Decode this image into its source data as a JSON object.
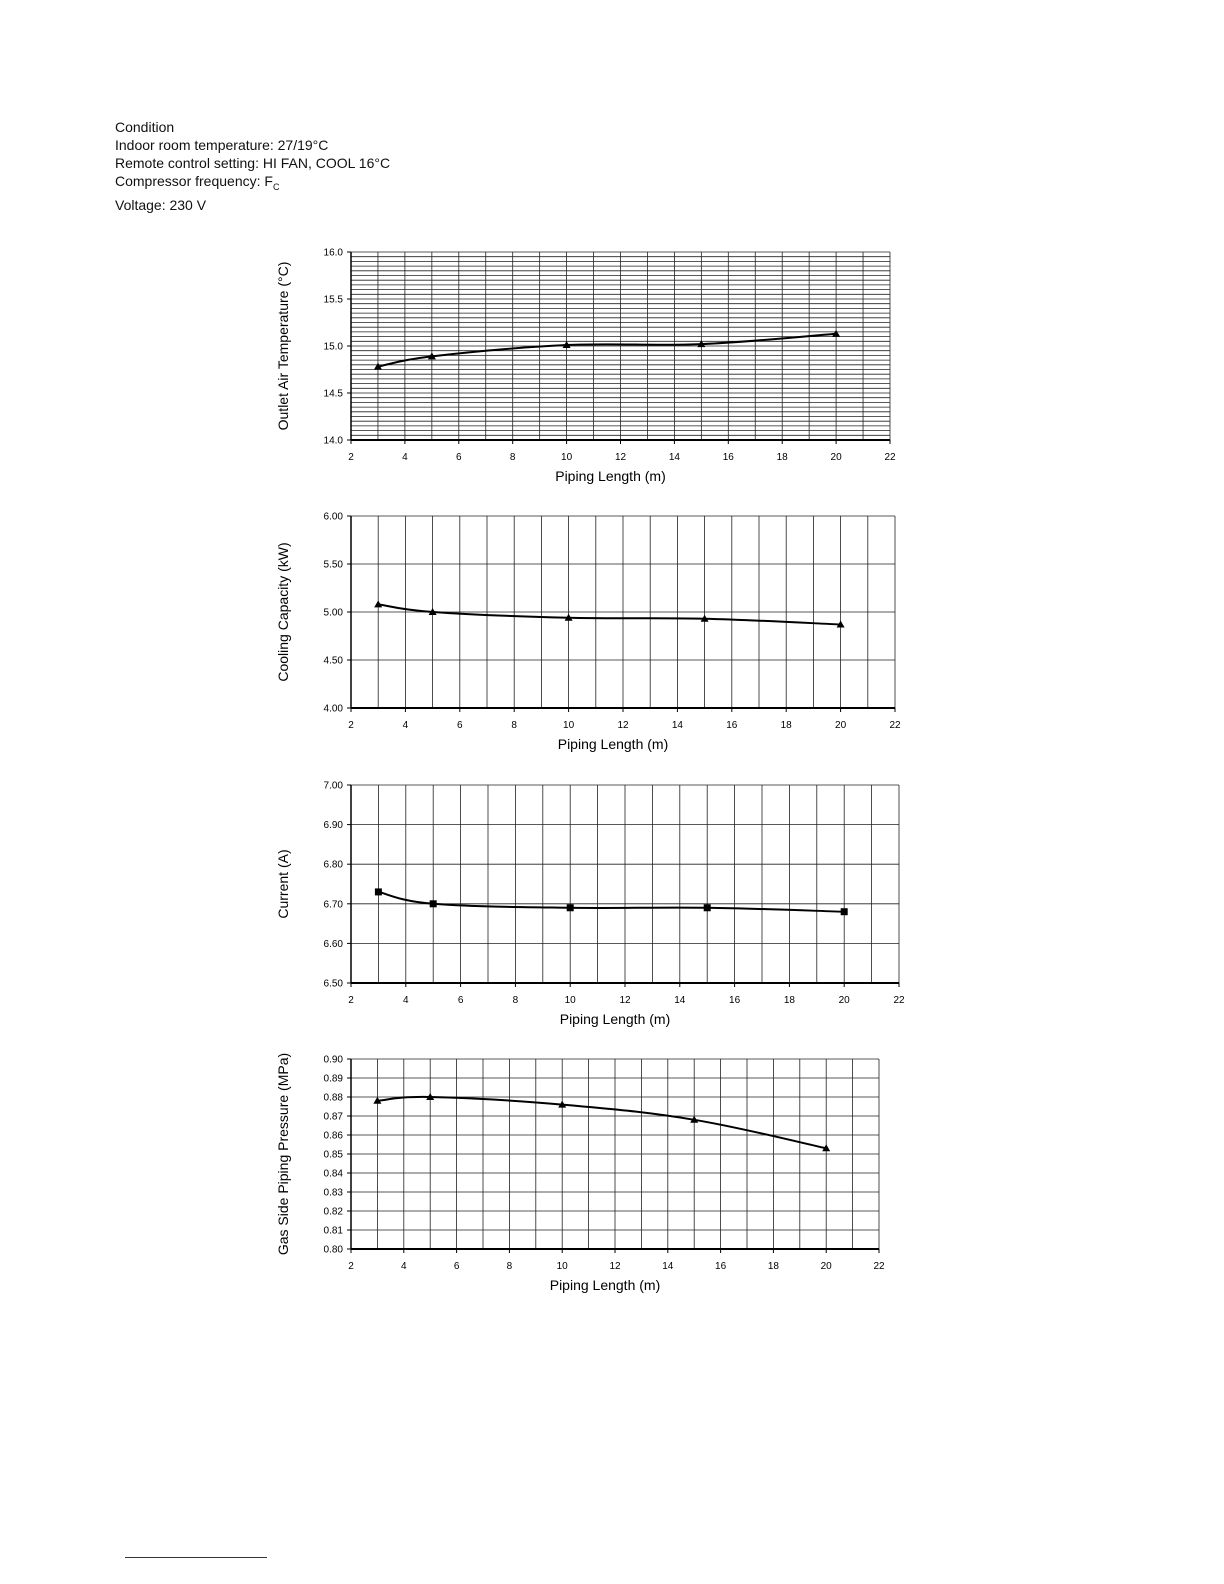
{
  "condition": {
    "heading": "Condition",
    "indoor": "Indoor room temperature: 27/19°C",
    "remote": "Remote control setting: HI FAN, COOL 16°C",
    "compressor_prefix": "Compressor frequency: F",
    "compressor_sub": "C",
    "voltage": "Voltage: 230 V"
  },
  "chart_data": [
    {
      "type": "line",
      "xlabel": "Piping Length (m)",
      "ylabel": "Outlet Air Temperature (°C)",
      "xlim": [
        2,
        22
      ],
      "xticks": [
        2,
        4,
        6,
        8,
        10,
        12,
        14,
        16,
        18,
        20,
        22
      ],
      "ylim": [
        14.0,
        16.0
      ],
      "yticks": [
        "14.0",
        "14.5",
        "15.0",
        "15.5",
        "16.0"
      ],
      "grid": true,
      "minor_y_step": 0.05,
      "x_grid_step": 1,
      "marker": "triangle",
      "x": [
        3,
        5,
        10,
        15,
        20
      ],
      "y": [
        14.78,
        14.89,
        15.01,
        15.02,
        15.13
      ]
    },
    {
      "type": "line",
      "xlabel": "Piping Length (m)",
      "ylabel": "Cooling Capacity (kW)",
      "xlim": [
        2,
        22
      ],
      "xticks": [
        2,
        4,
        6,
        8,
        10,
        12,
        14,
        16,
        18,
        20,
        22
      ],
      "ylim": [
        4.0,
        6.0
      ],
      "yticks": [
        "4.00",
        "4.50",
        "5.00",
        "5.50",
        "6.00"
      ],
      "grid": true,
      "minor_y_step": 0.5,
      "x_grid_step": 1,
      "marker": "triangle",
      "x": [
        3,
        5,
        10,
        15,
        20
      ],
      "y": [
        5.08,
        5.0,
        4.94,
        4.93,
        4.87
      ]
    },
    {
      "type": "line",
      "xlabel": "Piping Length (m)",
      "ylabel": "Current (A)",
      "xlim": [
        2,
        22
      ],
      "xticks": [
        2,
        4,
        6,
        8,
        10,
        12,
        14,
        16,
        18,
        20,
        22
      ],
      "ylim": [
        6.5,
        7.0
      ],
      "yticks": [
        "6.50",
        "6.60",
        "6.70",
        "6.80",
        "6.90",
        "7.00"
      ],
      "grid": true,
      "minor_y_step": 0.1,
      "x_grid_step": 1,
      "marker": "square",
      "x": [
        3,
        5,
        10,
        15,
        20
      ],
      "y": [
        6.73,
        6.7,
        6.69,
        6.69,
        6.68
      ]
    },
    {
      "type": "line",
      "xlabel": "Piping Length (m)",
      "ylabel": "Gas Side Piping Pressure (MPa)",
      "xlim": [
        2,
        22
      ],
      "xticks": [
        2,
        4,
        6,
        8,
        10,
        12,
        14,
        16,
        18,
        20,
        22
      ],
      "ylim": [
        0.8,
        0.9
      ],
      "yticks": [
        "0.80",
        "0.81",
        "0.82",
        "0.83",
        "0.84",
        "0.85",
        "0.86",
        "0.87",
        "0.88",
        "0.89",
        "0.90"
      ],
      "grid": true,
      "minor_y_step": 0.01,
      "x_grid_step": 1,
      "marker": "triangle",
      "x": [
        3,
        5,
        10,
        15,
        20
      ],
      "y": [
        0.878,
        0.88,
        0.876,
        0.868,
        0.853
      ]
    }
  ]
}
